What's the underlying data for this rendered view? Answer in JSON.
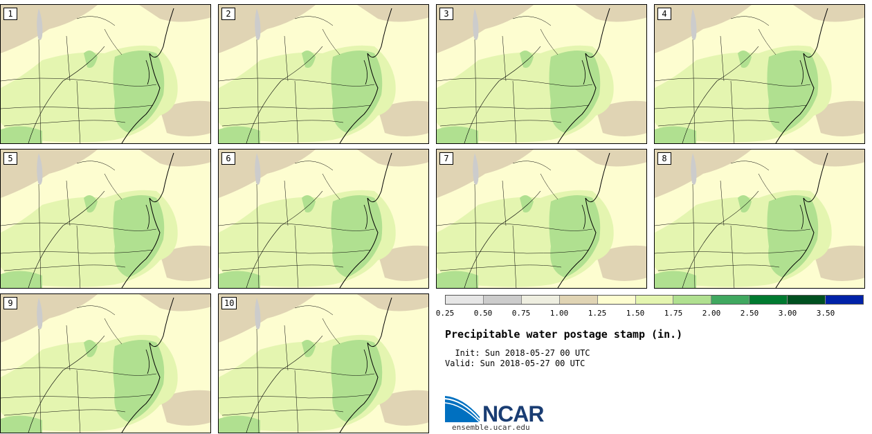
{
  "panels": [
    {
      "label": "1"
    },
    {
      "label": "2"
    },
    {
      "label": "3"
    },
    {
      "label": "4"
    },
    {
      "label": "5"
    },
    {
      "label": "6"
    },
    {
      "label": "7"
    },
    {
      "label": "8"
    },
    {
      "label": "9"
    },
    {
      "label": "10"
    }
  ],
  "colorbar": {
    "colors": [
      "#e6e6e6",
      "#cccccc",
      "#eeeee0",
      "#e0d4b4",
      "#fdfdd0",
      "#e4f5b0",
      "#b0e090",
      "#40a860",
      "#007a30",
      "#005020",
      "#0022a8"
    ],
    "labels": [
      "0.25",
      "0.50",
      "0.75",
      "1.00",
      "1.25",
      "1.50",
      "1.75",
      "2.00",
      "2.50",
      "3.00",
      "3.50"
    ]
  },
  "legend": {
    "title": "Precipitable water postage stamp (in.)",
    "init": "  Init: Sun 2018-05-27 00 UTC",
    "valid": "Valid: Sun 2018-05-27 00 UTC"
  },
  "logo": {
    "name": "NCAR",
    "site": "ensemble.ucar.edu"
  }
}
